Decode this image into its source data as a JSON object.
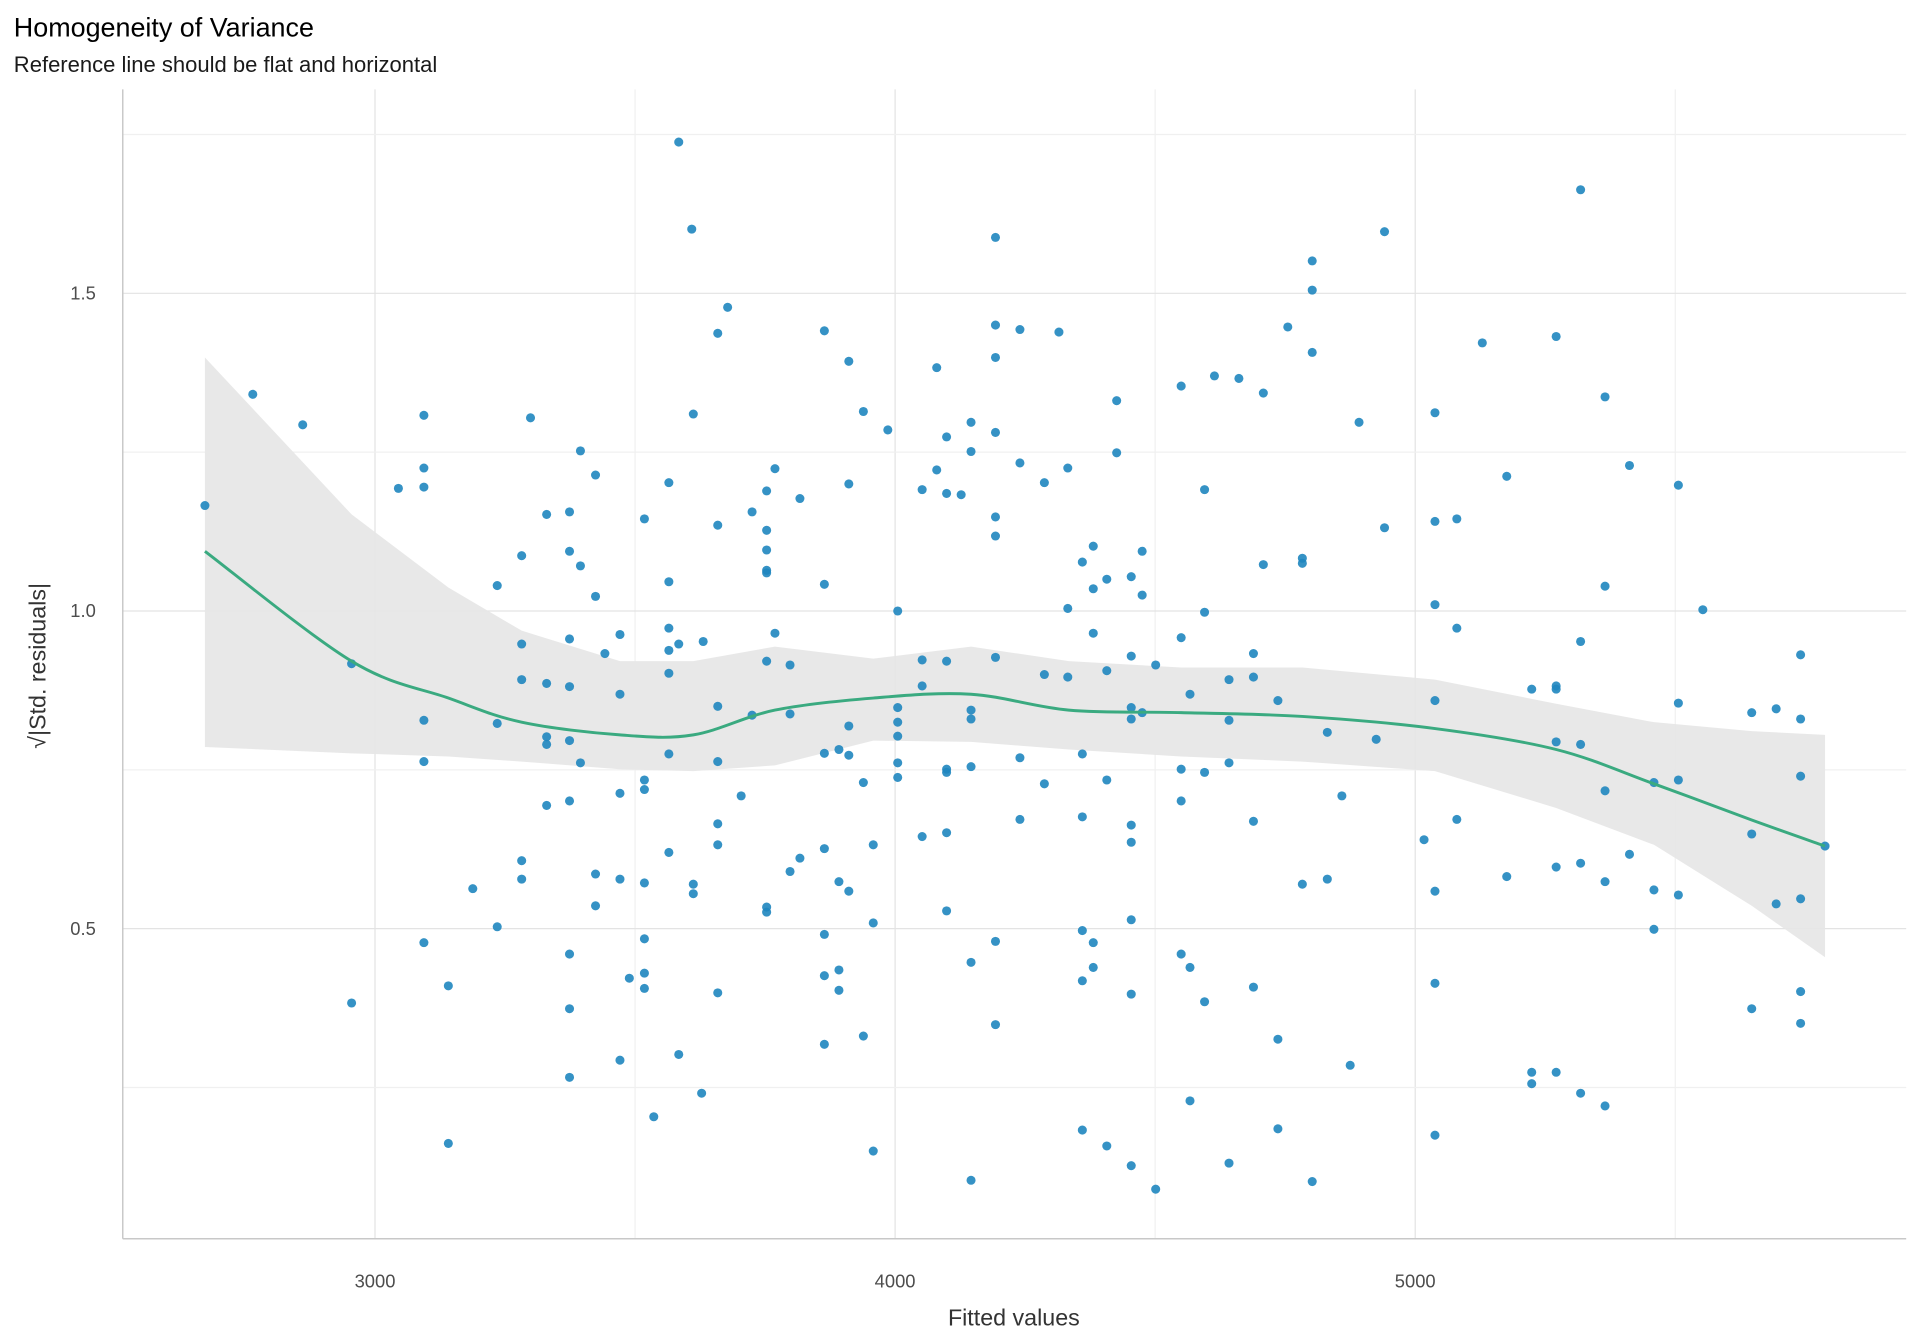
{
  "chart_data": {
    "type": "scatter",
    "title": "Homogeneity of Variance",
    "subtitle": "Reference line should be flat and horizontal",
    "xlabel": "Fitted values",
    "ylabel": "√|Std. residuals|",
    "xlim": [
      2515,
      5944
    ],
    "ylim": [
      0.012,
      1.821
    ],
    "xticks": [
      "3000",
      "4000",
      "5000"
    ],
    "yticks": [
      "0.5",
      "1.0",
      "1.5"
    ],
    "grid": true,
    "colors": {
      "points": "#1f86bf",
      "line": "#3aaa80",
      "band": "#e6e6e6"
    },
    "points": [
      [
        2673,
        1.166
      ],
      [
        2765,
        1.341
      ],
      [
        2861,
        1.293
      ],
      [
        2955,
        0.917
      ],
      [
        2955,
        0.383
      ],
      [
        3045,
        1.193
      ],
      [
        3094,
        1.308
      ],
      [
        3094,
        1.225
      ],
      [
        3094,
        1.195
      ],
      [
        3094,
        0.828
      ],
      [
        3094,
        0.763
      ],
      [
        3094,
        0.478
      ],
      [
        3141,
        0.41
      ],
      [
        3141,
        0.162
      ],
      [
        3188,
        0.563
      ],
      [
        3235,
        1.04
      ],
      [
        3235,
        0.823
      ],
      [
        3235,
        0.503
      ],
      [
        3282,
        1.087
      ],
      [
        3282,
        0.948
      ],
      [
        3282,
        0.892
      ],
      [
        3282,
        0.607
      ],
      [
        3282,
        0.578
      ],
      [
        3299,
        1.304
      ],
      [
        3330,
        1.152
      ],
      [
        3330,
        0.886
      ],
      [
        3330,
        0.802
      ],
      [
        3330,
        0.79
      ],
      [
        3330,
        0.694
      ],
      [
        3374,
        1.156
      ],
      [
        3374,
        1.094
      ],
      [
        3374,
        0.956
      ],
      [
        3374,
        0.881
      ],
      [
        3374,
        0.796
      ],
      [
        3374,
        0.701
      ],
      [
        3374,
        0.46
      ],
      [
        3374,
        0.374
      ],
      [
        3374,
        0.266
      ],
      [
        3395,
        1.252
      ],
      [
        3395,
        1.071
      ],
      [
        3395,
        0.761
      ],
      [
        3424,
        1.214
      ],
      [
        3424,
        1.023
      ],
      [
        3424,
        0.586
      ],
      [
        3424,
        0.536
      ],
      [
        3442,
        0.933
      ],
      [
        3471,
        0.963
      ],
      [
        3471,
        0.869
      ],
      [
        3471,
        0.713
      ],
      [
        3471,
        0.578
      ],
      [
        3471,
        0.293
      ],
      [
        3489,
        0.422
      ],
      [
        3518,
        1.145
      ],
      [
        3518,
        0.734
      ],
      [
        3518,
        0.719
      ],
      [
        3518,
        0.572
      ],
      [
        3518,
        0.484
      ],
      [
        3518,
        0.43
      ],
      [
        3518,
        0.406
      ],
      [
        3536,
        0.204
      ],
      [
        3565,
        1.202
      ],
      [
        3565,
        1.046
      ],
      [
        3565,
        0.973
      ],
      [
        3565,
        0.938
      ],
      [
        3565,
        0.902
      ],
      [
        3565,
        0.775
      ],
      [
        3565,
        0.62
      ],
      [
        3584,
        1.738
      ],
      [
        3584,
        0.948
      ],
      [
        3584,
        0.302
      ],
      [
        3609,
        1.601
      ],
      [
        3612,
        1.31
      ],
      [
        3612,
        0.57
      ],
      [
        3612,
        0.555
      ],
      [
        3628,
        0.241
      ],
      [
        3631,
        0.952
      ],
      [
        3659,
        1.437
      ],
      [
        3659,
        1.135
      ],
      [
        3659,
        0.85
      ],
      [
        3659,
        0.763
      ],
      [
        3659,
        0.665
      ],
      [
        3659,
        0.632
      ],
      [
        3659,
        0.399
      ],
      [
        3678,
        1.478
      ],
      [
        3704,
        0.709
      ],
      [
        3725,
        1.156
      ],
      [
        3725,
        0.836
      ],
      [
        3753,
        1.189
      ],
      [
        3753,
        1.127
      ],
      [
        3753,
        1.096
      ],
      [
        3753,
        1.064
      ],
      [
        3753,
        1.06
      ],
      [
        3753,
        0.921
      ],
      [
        3753,
        0.534
      ],
      [
        3753,
        0.526
      ],
      [
        3769,
        1.224
      ],
      [
        3769,
        0.965
      ],
      [
        3798,
        0.915
      ],
      [
        3798,
        0.59
      ],
      [
        3798,
        0.838
      ],
      [
        3817,
        1.177
      ],
      [
        3817,
        0.611
      ],
      [
        3864,
        1.441
      ],
      [
        3864,
        1.042
      ],
      [
        3864,
        0.776
      ],
      [
        3864,
        0.626
      ],
      [
        3864,
        0.491
      ],
      [
        3864,
        0.426
      ],
      [
        3864,
        0.318
      ],
      [
        3892,
        0.782
      ],
      [
        3892,
        0.574
      ],
      [
        3892,
        0.435
      ],
      [
        3892,
        0.403
      ],
      [
        3911,
        1.393
      ],
      [
        3911,
        1.2
      ],
      [
        3911,
        0.819
      ],
      [
        3911,
        0.773
      ],
      [
        3911,
        0.559
      ],
      [
        3939,
        1.314
      ],
      [
        3939,
        0.73
      ],
      [
        3939,
        0.331
      ],
      [
        3958,
        0.632
      ],
      [
        3958,
        0.509
      ],
      [
        3958,
        0.15
      ],
      [
        3986,
        1.285
      ],
      [
        4005,
        1.0
      ],
      [
        4005,
        0.848
      ],
      [
        4005,
        0.825
      ],
      [
        4005,
        0.803
      ],
      [
        4005,
        0.761
      ],
      [
        4005,
        0.738
      ],
      [
        4052,
        1.191
      ],
      [
        4052,
        0.923
      ],
      [
        4052,
        0.882
      ],
      [
        4052,
        0.645
      ],
      [
        4080,
        1.383
      ],
      [
        4080,
        1.222
      ],
      [
        4099,
        1.274
      ],
      [
        4099,
        1.185
      ],
      [
        4099,
        0.921
      ],
      [
        4099,
        0.751
      ],
      [
        4099,
        0.746
      ],
      [
        4099,
        0.651
      ],
      [
        4099,
        0.528
      ],
      [
        4127,
        1.183
      ],
      [
        4146,
        1.297
      ],
      [
        4146,
        1.251
      ],
      [
        4146,
        0.844
      ],
      [
        4146,
        0.83
      ],
      [
        4146,
        0.755
      ],
      [
        4146,
        0.447
      ],
      [
        4146,
        0.104
      ],
      [
        4193,
        1.588
      ],
      [
        4193,
        1.45
      ],
      [
        4193,
        1.399
      ],
      [
        4193,
        1.281
      ],
      [
        4193,
        1.148
      ],
      [
        4193,
        1.118
      ],
      [
        4193,
        0.927
      ],
      [
        4193,
        0.48
      ],
      [
        4193,
        0.349
      ],
      [
        4240,
        1.443
      ],
      [
        4240,
        1.233
      ],
      [
        4240,
        0.769
      ],
      [
        4240,
        0.672
      ],
      [
        4287,
        1.202
      ],
      [
        4287,
        0.9
      ],
      [
        4287,
        0.728
      ],
      [
        4315,
        1.439
      ],
      [
        4332,
        1.225
      ],
      [
        4332,
        1.004
      ],
      [
        4332,
        0.896
      ],
      [
        4360,
        1.077
      ],
      [
        4360,
        0.775
      ],
      [
        4360,
        0.676
      ],
      [
        4360,
        0.497
      ],
      [
        4360,
        0.418
      ],
      [
        4360,
        0.183
      ],
      [
        4381,
        1.102
      ],
      [
        4381,
        1.035
      ],
      [
        4381,
        0.965
      ],
      [
        4381,
        0.478
      ],
      [
        4381,
        0.439
      ],
      [
        4407,
        1.05
      ],
      [
        4407,
        0.906
      ],
      [
        4407,
        0.734
      ],
      [
        4407,
        0.158
      ],
      [
        4426,
        1.331
      ],
      [
        4426,
        1.249
      ],
      [
        4454,
        1.054
      ],
      [
        4454,
        0.929
      ],
      [
        4454,
        0.848
      ],
      [
        4454,
        0.83
      ],
      [
        4454,
        0.663
      ],
      [
        4454,
        0.636
      ],
      [
        4454,
        0.514
      ],
      [
        4454,
        0.397
      ],
      [
        4454,
        0.127
      ],
      [
        4475,
        1.094
      ],
      [
        4475,
        1.025
      ],
      [
        4475,
        0.84
      ],
      [
        4501,
        0.915
      ],
      [
        4501,
        0.09
      ],
      [
        4550,
        1.354
      ],
      [
        4550,
        0.958
      ],
      [
        4550,
        0.751
      ],
      [
        4550,
        0.701
      ],
      [
        4550,
        0.46
      ],
      [
        4567,
        0.869
      ],
      [
        4567,
        0.439
      ],
      [
        4567,
        0.229
      ],
      [
        4595,
        1.191
      ],
      [
        4595,
        0.998
      ],
      [
        4595,
        0.746
      ],
      [
        4595,
        0.385
      ],
      [
        4614,
        1.37
      ],
      [
        4642,
        0.892
      ],
      [
        4642,
        0.828
      ],
      [
        4642,
        0.761
      ],
      [
        4642,
        0.131
      ],
      [
        4661,
        1.366
      ],
      [
        4689,
        0.933
      ],
      [
        4689,
        0.896
      ],
      [
        4689,
        0.669
      ],
      [
        4689,
        0.408
      ],
      [
        4708,
        1.343
      ],
      [
        4708,
        1.073
      ],
      [
        4736,
        0.859
      ],
      [
        4736,
        0.326
      ],
      [
        4736,
        0.185
      ],
      [
        4755,
        1.447
      ],
      [
        4783,
        1.083
      ],
      [
        4783,
        1.075
      ],
      [
        4783,
        0.57
      ],
      [
        4802,
        1.551
      ],
      [
        4802,
        1.505
      ],
      [
        4802,
        1.407
      ],
      [
        4802,
        0.102
      ],
      [
        4831,
        0.809
      ],
      [
        4831,
        0.578
      ],
      [
        4859,
        0.709
      ],
      [
        4875,
        0.285
      ],
      [
        4892,
        1.297
      ],
      [
        4925,
        0.798
      ],
      [
        4941,
        1.597
      ],
      [
        4941,
        1.131
      ],
      [
        5017,
        0.64
      ],
      [
        5038,
        1.312
      ],
      [
        5038,
        1.141
      ],
      [
        5038,
        1.01
      ],
      [
        5038,
        0.859
      ],
      [
        5038,
        0.559
      ],
      [
        5038,
        0.414
      ],
      [
        5038,
        0.175
      ],
      [
        5080,
        1.145
      ],
      [
        5080,
        0.973
      ],
      [
        5080,
        0.672
      ],
      [
        5129,
        1.422
      ],
      [
        5176,
        1.212
      ],
      [
        5176,
        0.582
      ],
      [
        5224,
        0.877
      ],
      [
        5224,
        0.274
      ],
      [
        5224,
        0.256
      ],
      [
        5271,
        1.432
      ],
      [
        5271,
        0.882
      ],
      [
        5271,
        0.877
      ],
      [
        5271,
        0.794
      ],
      [
        5271,
        0.597
      ],
      [
        5271,
        0.274
      ],
      [
        5318,
        1.663
      ],
      [
        5318,
        0.952
      ],
      [
        5318,
        0.79
      ],
      [
        5318,
        0.603
      ],
      [
        5318,
        0.241
      ],
      [
        5365,
        1.337
      ],
      [
        5365,
        1.039
      ],
      [
        5365,
        0.717
      ],
      [
        5365,
        0.574
      ],
      [
        5365,
        0.221
      ],
      [
        5412,
        1.229
      ],
      [
        5412,
        0.617
      ],
      [
        5459,
        0.73
      ],
      [
        5459,
        0.561
      ],
      [
        5459,
        0.499
      ],
      [
        5506,
        1.198
      ],
      [
        5506,
        0.855
      ],
      [
        5506,
        0.734
      ],
      [
        5506,
        0.553
      ],
      [
        5553,
        1.002
      ],
      [
        5647,
        0.84
      ],
      [
        5647,
        0.649
      ],
      [
        5647,
        0.374
      ],
      [
        5694,
        0.539
      ],
      [
        5694,
        0.846
      ],
      [
        5741,
        0.931
      ],
      [
        5741,
        0.83
      ],
      [
        5741,
        0.74
      ],
      [
        5741,
        0.547
      ],
      [
        5741,
        0.401
      ],
      [
        5741,
        0.351
      ],
      [
        5788,
        0.63
      ]
    ],
    "smooth": {
      "x": [
        2673,
        2955,
        3141,
        3282,
        3471,
        3612,
        3769,
        3958,
        4146,
        4334,
        4550,
        4783,
        5038,
        5271,
        5459,
        5647,
        5788
      ],
      "y": [
        1.094,
        0.921,
        0.863,
        0.825,
        0.805,
        0.805,
        0.844,
        0.863,
        0.869,
        0.844,
        0.84,
        0.834,
        0.815,
        0.782,
        0.728,
        0.671,
        0.63
      ],
      "upper": [
        1.399,
        1.152,
        1.037,
        0.969,
        0.921,
        0.921,
        0.944,
        0.925,
        0.944,
        0.921,
        0.911,
        0.911,
        0.892,
        0.854,
        0.825,
        0.811,
        0.805
      ],
      "lower": [
        0.786,
        0.776,
        0.771,
        0.763,
        0.751,
        0.748,
        0.757,
        0.796,
        0.794,
        0.782,
        0.771,
        0.763,
        0.748,
        0.69,
        0.632,
        0.536,
        0.455
      ]
    }
  }
}
